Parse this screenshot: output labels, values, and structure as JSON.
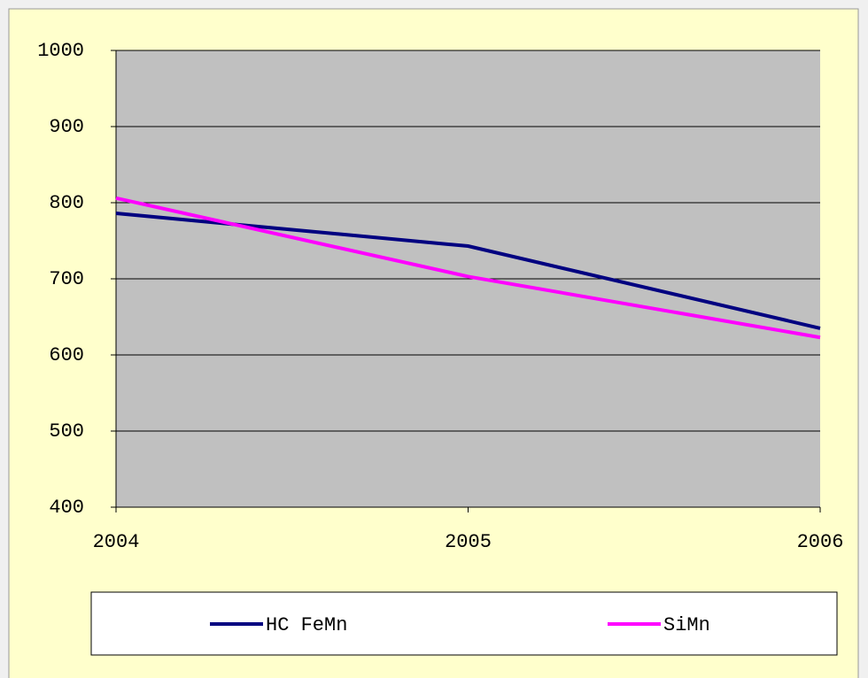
{
  "chart_data": {
    "type": "line",
    "categories": [
      "2004",
      "2005",
      "2006"
    ],
    "series": [
      {
        "name": "HC FeMn",
        "color": "#000080",
        "values": [
          786,
          743,
          635
        ]
      },
      {
        "name": "SiMn",
        "color": "#ff00ff",
        "values": [
          806,
          703,
          623
        ]
      }
    ],
    "ylim": [
      400,
      1000
    ],
    "yticks": [
      400,
      500,
      600,
      700,
      800,
      900,
      1000
    ],
    "grid": true,
    "legend": "bottom"
  }
}
